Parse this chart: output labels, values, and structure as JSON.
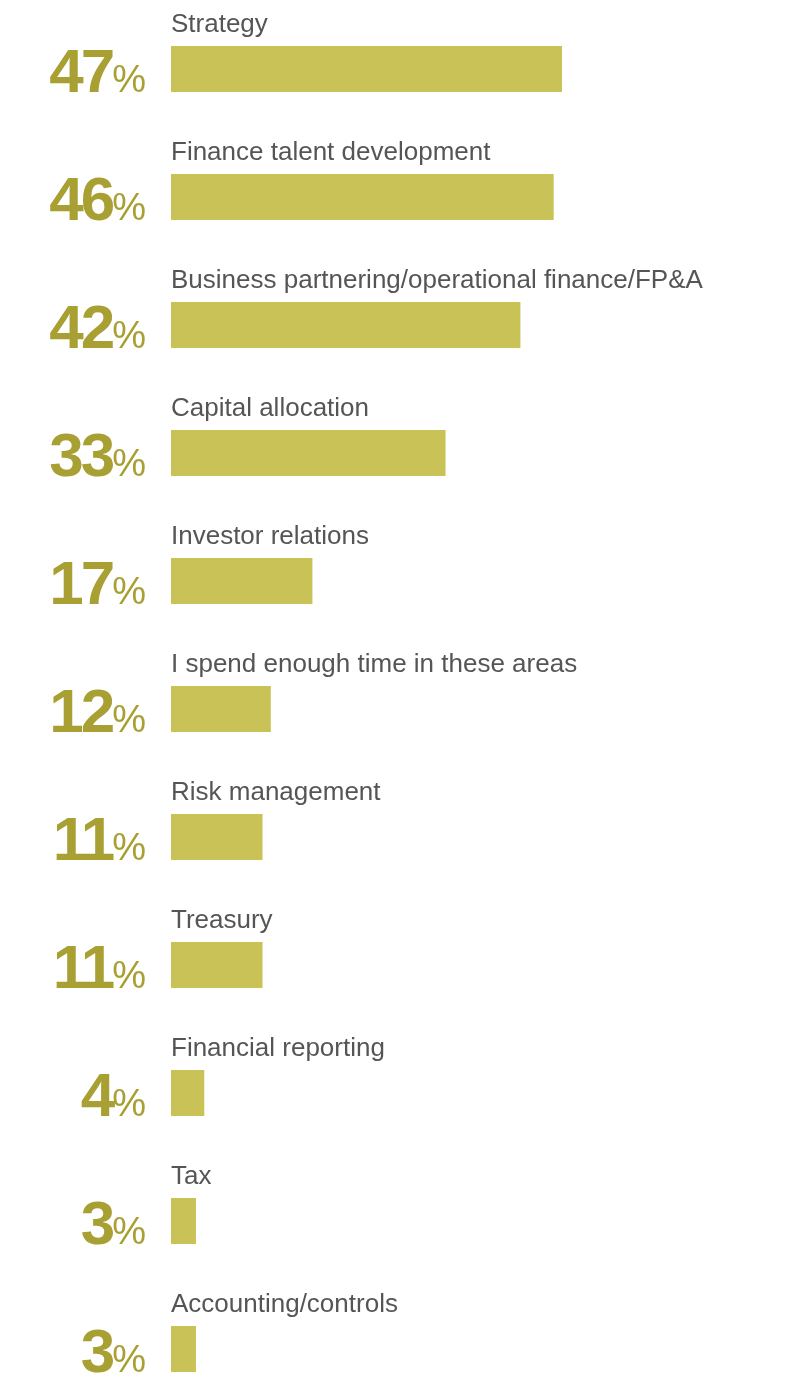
{
  "chart_data": {
    "type": "bar",
    "orientation": "horizontal",
    "categories": [
      "Strategy",
      "Finance talent development",
      "Business partnering/operational finance/FP&A",
      "Capital allocation",
      "Investor relations",
      "I spend enough time in these areas",
      "Risk management",
      "Treasury",
      "Financial reporting",
      "Tax",
      "Accounting/controls"
    ],
    "values": [
      47,
      46,
      42,
      33,
      17,
      12,
      11,
      11,
      4,
      3,
      3
    ],
    "value_labels": [
      "47%",
      "46%",
      "42%",
      "33%",
      "17%",
      "12%",
      "11%",
      "11%",
      "4%",
      "3%",
      "3%"
    ],
    "color": "#c9c357"
  }
}
